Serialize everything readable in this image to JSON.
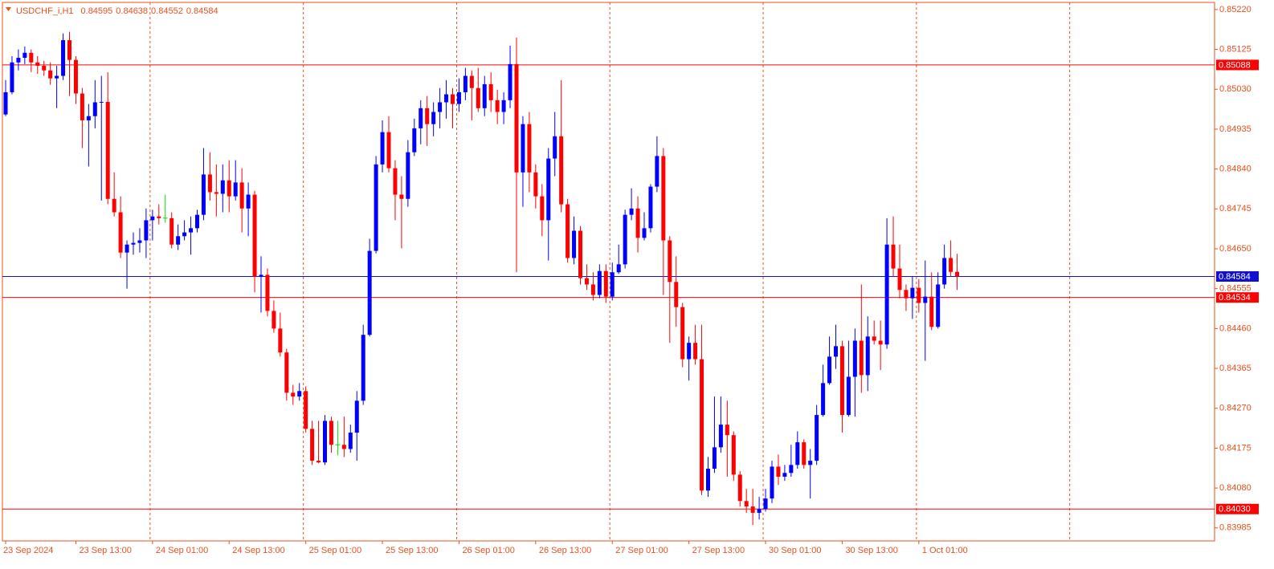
{
  "chart_data": {
    "type": "candlestick",
    "symbol": "USDCHF_i,H1",
    "header_ohlc": [
      0.84595,
      0.84638,
      0.84552,
      0.84584
    ],
    "categories": [
      "23 Sep 2024",
      null,
      null,
      null,
      null,
      null,
      null,
      null,
      null,
      null,
      null,
      "23 Sep 13:00",
      null,
      null,
      null,
      null,
      null,
      null,
      null,
      null,
      null,
      null,
      null,
      "24 Sep 01:00",
      null,
      null,
      null,
      null,
      null,
      null,
      null,
      null,
      null,
      null,
      null,
      "24 Sep 13:00",
      null,
      null,
      null,
      null,
      null,
      null,
      null,
      null,
      null,
      null,
      null,
      "25 Sep 01:00",
      null,
      null,
      null,
      null,
      null,
      null,
      null,
      null,
      null,
      null,
      null,
      "25 Sep 13:00",
      null,
      null,
      null,
      null,
      null,
      null,
      null,
      null,
      null,
      null,
      null,
      "26 Sep 01:00",
      null,
      null,
      null,
      null,
      null,
      null,
      null,
      null,
      null,
      null,
      null,
      "26 Sep 13:00",
      null,
      null,
      null,
      null,
      null,
      null,
      null,
      null,
      null,
      null,
      null,
      "27 Sep 01:00",
      null,
      null,
      null,
      null,
      null,
      null,
      null,
      null,
      null,
      null,
      null,
      "27 Sep 13:00",
      null,
      null,
      null,
      null,
      null,
      null,
      null,
      null,
      null,
      null,
      null,
      "30 Sep 01:00",
      null,
      null,
      null,
      null,
      null,
      null,
      null,
      null,
      null,
      null,
      null,
      "30 Sep 13:00",
      null,
      null,
      null,
      null,
      null,
      null,
      null,
      null,
      null,
      null,
      null,
      "1 Oct 01:00",
      null,
      null,
      null,
      null,
      null,
      null
    ],
    "open": [
      0.8497,
      0.85023,
      0.85094,
      0.85105,
      0.85117,
      0.85094,
      0.85086,
      0.85075,
      0.85056,
      0.85062,
      0.85147,
      0.851,
      0.8502,
      0.84956,
      0.84966,
      0.84999,
      0.85,
      0.84769,
      0.84737,
      0.84641,
      0.8466,
      0.84664,
      0.8467,
      0.84718,
      0.84727,
      0.84723,
      0.84723,
      0.8466,
      0.8468,
      0.84689,
      0.84699,
      0.84731,
      0.84827,
      0.84785,
      0.84781,
      0.84813,
      0.84775,
      0.84808,
      0.84746,
      0.84779,
      0.84584,
      0.84588,
      0.84502,
      0.8446,
      0.84403,
      0.84307,
      0.84298,
      0.84311,
      0.84221,
      0.84145,
      0.84141,
      0.8424,
      0.84183,
      0.84183,
      0.84173,
      0.84212,
      0.84288,
      0.84445,
      0.84645,
      0.84851,
      0.84928,
      0.84842,
      0.84779,
      0.84769,
      0.8488,
      0.84937,
      0.84985,
      0.84947,
      0.84976,
      0.84999,
      0.85018,
      0.84995,
      0.85023,
      0.85062,
      0.85033,
      0.84985,
      0.85042,
      0.85004,
      0.84976,
      0.85004,
      0.8509,
      0.84832,
      0.84947,
      0.84832,
      0.84775,
      0.84718,
      0.84865,
      0.84918,
      0.84756,
      0.84628,
      0.84693,
      0.8458,
      0.84565,
      0.8454,
      0.84597,
      0.84536,
      0.84594,
      0.84613,
      0.84731,
      0.84746,
      0.84676,
      0.84699,
      0.84798,
      0.84871,
      0.8467,
      0.84571,
      0.84511,
      0.84387,
      0.84426,
      0.84387,
      0.84074,
      0.84126,
      0.84177,
      0.84231,
      0.84206,
      0.84112,
      0.84049,
      0.84036,
      0.84021,
      0.8403,
      0.84055,
      0.84131,
      0.84107,
      0.84116,
      0.84135,
      0.84189,
      0.84135,
      0.84145,
      0.84254,
      0.8433,
      0.84393,
      0.84418,
      0.84254,
      0.84345,
      0.84431,
      0.84349,
      0.84441,
      0.84431,
      0.84422,
      0.8466,
      0.84603,
      0.84552,
      0.84532,
      0.84557,
      0.84521,
      0.84536,
      0.84464,
      0.84565,
      0.84628,
      0.84595
    ],
    "high": [
      0.85052,
      0.85109,
      0.85125,
      0.85132,
      0.85125,
      0.85109,
      0.85098,
      0.85094,
      0.85086,
      0.85163,
      0.85167,
      0.85109,
      0.85033,
      0.84995,
      0.85052,
      0.85062,
      0.85071,
      0.84832,
      0.84775,
      0.8467,
      0.84689,
      0.84699,
      0.84746,
      0.84743,
      0.84756,
      0.84779,
      0.84737,
      0.84708,
      0.84718,
      0.84727,
      0.84743,
      0.8489,
      0.8488,
      0.84851,
      0.84851,
      0.84861,
      0.84861,
      0.84842,
      0.84808,
      0.84788,
      0.84632,
      0.84603,
      0.84527,
      0.84498,
      0.84412,
      0.84326,
      0.8433,
      0.84322,
      0.8424,
      0.8424,
      0.84254,
      0.8425,
      0.8424,
      0.8425,
      0.84231,
      0.84311,
      0.84469,
      0.84674,
      0.84871,
      0.84956,
      0.84966,
      0.84861,
      0.84823,
      0.84909,
      0.8496,
      0.85004,
      0.85014,
      0.84999,
      0.85033,
      0.85052,
      0.85033,
      0.85056,
      0.85081,
      0.85075,
      0.85081,
      0.85062,
      0.85071,
      0.85029,
      0.85023,
      0.85134,
      0.85153,
      0.84966,
      0.84976,
      0.84851,
      0.84804,
      0.8489,
      0.84976,
      0.85052,
      0.84769,
      0.84727,
      0.84704,
      0.84613,
      0.84594,
      0.84613,
      0.84613,
      0.84617,
      0.8466,
      0.84743,
      0.84794,
      0.84775,
      0.84737,
      0.84804,
      0.84918,
      0.8489,
      0.8468,
      0.84632,
      0.84521,
      0.84441,
      0.84469,
      0.84469,
      0.84154,
      0.84298,
      0.84298,
      0.84288,
      0.84215,
      0.8412,
      0.84078,
      0.84078,
      0.84059,
      0.84078,
      0.84145,
      0.8416,
      0.84135,
      0.84183,
      0.84215,
      0.84196,
      0.84173,
      0.84278,
      0.84374,
      0.84441,
      0.84469,
      0.84431,
      0.84431,
      0.8446,
      0.84565,
      0.84489,
      0.84479,
      0.84479,
      0.84723,
      0.84727,
      0.8466,
      0.84565,
      0.84584,
      0.84578,
      0.84622,
      0.84594,
      0.84594,
      0.8466,
      0.8467,
      0.84638
    ],
    "low": [
      0.84966,
      0.85018,
      0.85075,
      0.8509,
      0.85071,
      0.85067,
      0.85062,
      0.85041,
      0.84985,
      0.85052,
      0.85014,
      0.84995,
      0.8489,
      0.84846,
      0.84937,
      0.84765,
      0.84756,
      0.84727,
      0.84628,
      0.84555,
      0.84636,
      0.84641,
      0.84628,
      0.8467,
      0.84708,
      0.84712,
      0.84651,
      0.84647,
      0.8467,
      0.84636,
      0.84689,
      0.84718,
      0.84765,
      0.84727,
      0.84737,
      0.84737,
      0.84765,
      0.84689,
      0.8468,
      0.84546,
      0.84498,
      0.84489,
      0.8445,
      0.84393,
      0.84288,
      0.84278,
      0.84288,
      0.84212,
      0.84135,
      0.84139,
      0.84135,
      0.84164,
      0.84158,
      0.84154,
      0.84164,
      0.84145,
      0.84278,
      0.84441,
      0.84639,
      0.84832,
      0.84832,
      0.84718,
      0.84651,
      0.8475,
      0.84871,
      0.84899,
      0.84895,
      0.84918,
      0.84937,
      0.8496,
      0.84937,
      0.84976,
      0.85004,
      0.84956,
      0.84976,
      0.84966,
      0.84976,
      0.84947,
      0.84947,
      0.84985,
      0.84594,
      0.8475,
      0.84785,
      0.84746,
      0.8468,
      0.84622,
      0.84823,
      0.84737,
      0.84617,
      0.84613,
      0.84565,
      0.84552,
      0.84527,
      0.84532,
      0.84521,
      0.84527,
      0.8459,
      0.84603,
      0.84718,
      0.84641,
      0.8467,
      0.84689,
      0.84785,
      0.8454,
      0.84426,
      0.84464,
      0.84368,
      0.84336,
      0.84374,
      0.84063,
      0.84059,
      0.84116,
      0.84164,
      0.84107,
      0.84097,
      0.84036,
      0.84021,
      0.83992,
      0.84005,
      0.84024,
      0.84044,
      0.84087,
      0.84097,
      0.84107,
      0.84126,
      0.84126,
      0.84055,
      0.84135,
      0.8425,
      0.84326,
      0.84364,
      0.84212,
      0.8425,
      0.8425,
      0.84307,
      0.84311,
      0.84422,
      0.84361,
      0.84412,
      0.84584,
      0.84532,
      0.84502,
      0.84483,
      0.84498,
      0.84383,
      0.84456,
      0.8446,
      0.84555,
      0.84584,
      0.84552
    ],
    "close": [
      0.85023,
      0.85094,
      0.85105,
      0.85117,
      0.85094,
      0.85086,
      0.85075,
      0.85056,
      0.85062,
      0.85147,
      0.851,
      0.8502,
      0.84956,
      0.84966,
      0.84999,
      0.85,
      0.84769,
      0.84737,
      0.84641,
      0.8466,
      0.84664,
      0.8467,
      0.84718,
      0.84727,
      0.84723,
      0.84723,
      0.8466,
      0.8468,
      0.84689,
      0.84699,
      0.84731,
      0.84827,
      0.84785,
      0.84781,
      0.84813,
      0.84775,
      0.84808,
      0.84746,
      0.84779,
      0.84584,
      0.84588,
      0.84502,
      0.8446,
      0.84403,
      0.84307,
      0.84298,
      0.84311,
      0.84221,
      0.84145,
      0.84141,
      0.8424,
      0.84183,
      0.84183,
      0.84173,
      0.84212,
      0.84288,
      0.84445,
      0.84645,
      0.84851,
      0.84928,
      0.84842,
      0.84779,
      0.84769,
      0.8488,
      0.84937,
      0.84985,
      0.84947,
      0.84976,
      0.84999,
      0.85018,
      0.84995,
      0.85023,
      0.85062,
      0.85033,
      0.84985,
      0.85042,
      0.85004,
      0.84976,
      0.85004,
      0.8509,
      0.84832,
      0.84947,
      0.84832,
      0.84775,
      0.84718,
      0.84865,
      0.84918,
      0.84756,
      0.84628,
      0.84693,
      0.8458,
      0.84565,
      0.8454,
      0.84597,
      0.84536,
      0.84594,
      0.84613,
      0.84731,
      0.84746,
      0.84676,
      0.84699,
      0.84798,
      0.84871,
      0.8467,
      0.84571,
      0.84511,
      0.84387,
      0.84426,
      0.84387,
      0.84074,
      0.84126,
      0.84177,
      0.84231,
      0.84206,
      0.84112,
      0.84049,
      0.84036,
      0.84021,
      0.8403,
      0.84055,
      0.84131,
      0.84107,
      0.84116,
      0.84135,
      0.84189,
      0.84135,
      0.84145,
      0.84254,
      0.8433,
      0.84393,
      0.84418,
      0.84254,
      0.84345,
      0.84431,
      0.84349,
      0.84441,
      0.84431,
      0.84422,
      0.8466,
      0.84603,
      0.84552,
      0.84532,
      0.84557,
      0.84521,
      0.84536,
      0.84464,
      0.84565,
      0.84628,
      0.84595,
      0.84584
    ],
    "ylim": [
      0.83954,
      0.85237
    ],
    "yticks": [
      {
        "value": 0.8522,
        "label": "0.85220"
      },
      0.85125,
      {
        "value": 0.8503,
        "label": "0.85030"
      },
      0.84935,
      {
        "value": 0.8484,
        "label": "0.84840"
      },
      0.84745,
      {
        "value": 0.8465,
        "label": "0.84650"
      },
      0.84555,
      {
        "value": 0.8446,
        "label": "0.84460"
      },
      0.84365,
      {
        "value": 0.8427,
        "label": "0.84270"
      },
      0.84175,
      {
        "value": 0.8408,
        "label": "0.84080"
      },
      0.83985
    ],
    "levels": [
      0.85088,
      0.84534,
      {
        "value": 0.8403,
        "label": "0.84030"
      }
    ],
    "level_color": "#ff0000",
    "bid": 0.84584,
    "bid_color": "#1010d0",
    "colors": {
      "up": "#0000ff",
      "down": "#ff0000",
      "doji": "#00e000"
    },
    "axis_color": "#e8501c",
    "grid": true
  }
}
